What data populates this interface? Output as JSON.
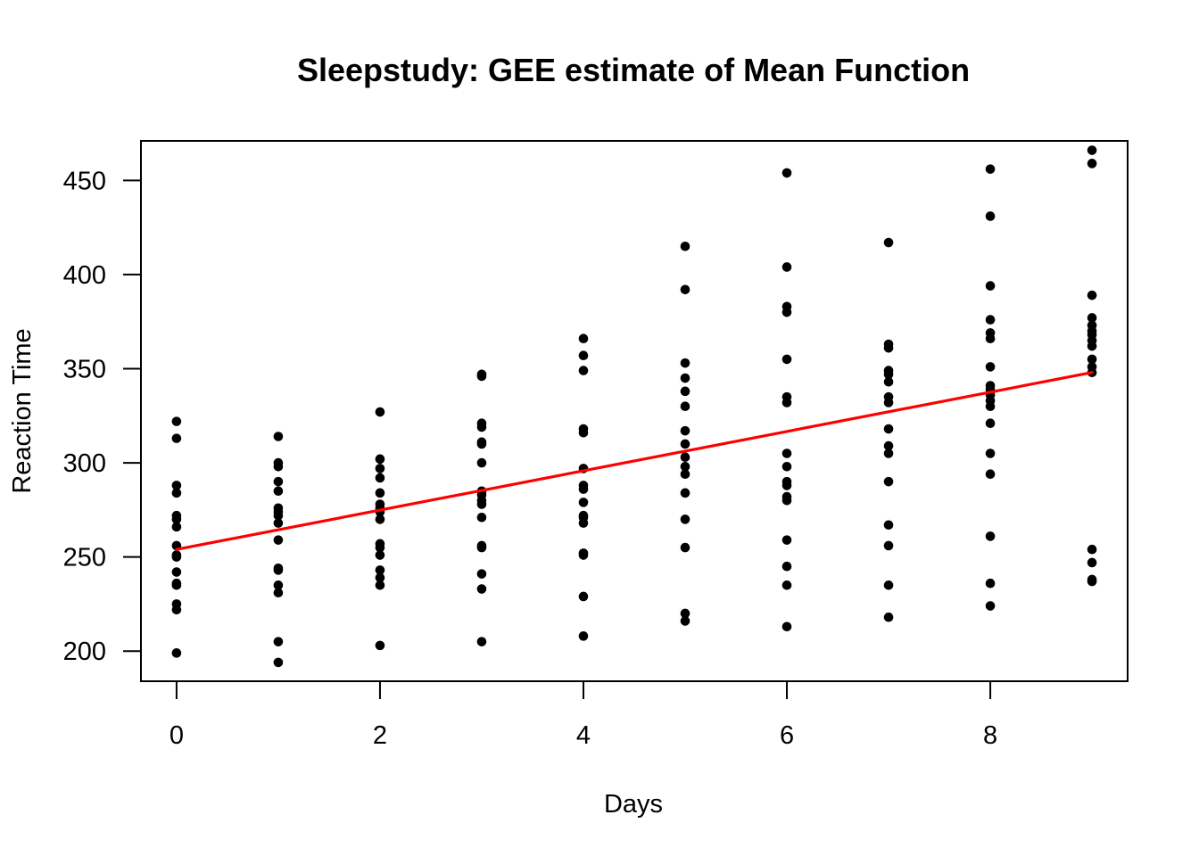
{
  "chart_data": {
    "type": "scatter",
    "title": "Sleepstudy: GEE estimate of Mean Function",
    "xlabel": "Days",
    "ylabel": "Reaction Time",
    "xlim": [
      -0.35,
      9.35
    ],
    "ylim": [
      184,
      471
    ],
    "xticks": [
      0,
      2,
      4,
      6,
      8
    ],
    "yticks": [
      200,
      250,
      300,
      350,
      400,
      450
    ],
    "grid": false,
    "legend": "none",
    "colors": {
      "points": "#000000",
      "fit_line": "#ff0000",
      "frame": "#000000"
    },
    "series": [
      {
        "type": "scatter",
        "points": [
          [
            0,
            199
          ],
          [
            0,
            222
          ],
          [
            0,
            225
          ],
          [
            0,
            235
          ],
          [
            0,
            236
          ],
          [
            0,
            242
          ],
          [
            0,
            250
          ],
          [
            0,
            251
          ],
          [
            0,
            256
          ],
          [
            0,
            266
          ],
          [
            0,
            270
          ],
          [
            0,
            272
          ],
          [
            0,
            284
          ],
          [
            0,
            288
          ],
          [
            0,
            313
          ],
          [
            0,
            322
          ],
          [
            1,
            194
          ],
          [
            1,
            205
          ],
          [
            1,
            231
          ],
          [
            1,
            235
          ],
          [
            1,
            243
          ],
          [
            1,
            244
          ],
          [
            1,
            259
          ],
          [
            1,
            268
          ],
          [
            1,
            272
          ],
          [
            1,
            274
          ],
          [
            1,
            276
          ],
          [
            1,
            285
          ],
          [
            1,
            290
          ],
          [
            1,
            298
          ],
          [
            1,
            300
          ],
          [
            1,
            314
          ],
          [
            2,
            203
          ],
          [
            2,
            235
          ],
          [
            2,
            239
          ],
          [
            2,
            243
          ],
          [
            2,
            251
          ],
          [
            2,
            255
          ],
          [
            2,
            257
          ],
          [
            2,
            270
          ],
          [
            2,
            274
          ],
          [
            2,
            276
          ],
          [
            2,
            278
          ],
          [
            2,
            284
          ],
          [
            2,
            292
          ],
          [
            2,
            297
          ],
          [
            2,
            302
          ],
          [
            2,
            327
          ],
          [
            3,
            205
          ],
          [
            3,
            233
          ],
          [
            3,
            241
          ],
          [
            3,
            255
          ],
          [
            3,
            256
          ],
          [
            3,
            271
          ],
          [
            3,
            278
          ],
          [
            3,
            280
          ],
          [
            3,
            283
          ],
          [
            3,
            285
          ],
          [
            3,
            300
          ],
          [
            3,
            310
          ],
          [
            3,
            311
          ],
          [
            3,
            319
          ],
          [
            3,
            321
          ],
          [
            3,
            346
          ],
          [
            3,
            347
          ],
          [
            4,
            208
          ],
          [
            4,
            229
          ],
          [
            4,
            251
          ],
          [
            4,
            252
          ],
          [
            4,
            268
          ],
          [
            4,
            271
          ],
          [
            4,
            272
          ],
          [
            4,
            279
          ],
          [
            4,
            286
          ],
          [
            4,
            288
          ],
          [
            4,
            297
          ],
          [
            4,
            316
          ],
          [
            4,
            318
          ],
          [
            4,
            349
          ],
          [
            4,
            357
          ],
          [
            4,
            366
          ],
          [
            5,
            216
          ],
          [
            5,
            220
          ],
          [
            5,
            255
          ],
          [
            5,
            270
          ],
          [
            5,
            284
          ],
          [
            5,
            294
          ],
          [
            5,
            298
          ],
          [
            5,
            303
          ],
          [
            5,
            310
          ],
          [
            5,
            317
          ],
          [
            5,
            330
          ],
          [
            5,
            338
          ],
          [
            5,
            345
          ],
          [
            5,
            353
          ],
          [
            5,
            392
          ],
          [
            5,
            415
          ],
          [
            6,
            213
          ],
          [
            6,
            235
          ],
          [
            6,
            245
          ],
          [
            6,
            259
          ],
          [
            6,
            280
          ],
          [
            6,
            282
          ],
          [
            6,
            288
          ],
          [
            6,
            290
          ],
          [
            6,
            298
          ],
          [
            6,
            305
          ],
          [
            6,
            332
          ],
          [
            6,
            335
          ],
          [
            6,
            355
          ],
          [
            6,
            380
          ],
          [
            6,
            383
          ],
          [
            6,
            404
          ],
          [
            6,
            454
          ],
          [
            7,
            218
          ],
          [
            7,
            235
          ],
          [
            7,
            256
          ],
          [
            7,
            267
          ],
          [
            7,
            290
          ],
          [
            7,
            305
          ],
          [
            7,
            309
          ],
          [
            7,
            318
          ],
          [
            7,
            332
          ],
          [
            7,
            335
          ],
          [
            7,
            343
          ],
          [
            7,
            347
          ],
          [
            7,
            349
          ],
          [
            7,
            361
          ],
          [
            7,
            363
          ],
          [
            7,
            417
          ],
          [
            8,
            224
          ],
          [
            8,
            236
          ],
          [
            8,
            261
          ],
          [
            8,
            294
          ],
          [
            8,
            305
          ],
          [
            8,
            321
          ],
          [
            8,
            330
          ],
          [
            8,
            333
          ],
          [
            8,
            336
          ],
          [
            8,
            339
          ],
          [
            8,
            341
          ],
          [
            8,
            351
          ],
          [
            8,
            366
          ],
          [
            8,
            369
          ],
          [
            8,
            376
          ],
          [
            8,
            394
          ],
          [
            8,
            431
          ],
          [
            8,
            456
          ],
          [
            9,
            237
          ],
          [
            9,
            238
          ],
          [
            9,
            247
          ],
          [
            9,
            254
          ],
          [
            9,
            348
          ],
          [
            9,
            351
          ],
          [
            9,
            355
          ],
          [
            9,
            362
          ],
          [
            9,
            365
          ],
          [
            9,
            368
          ],
          [
            9,
            370
          ],
          [
            9,
            373
          ],
          [
            9,
            377
          ],
          [
            9,
            389
          ],
          [
            9,
            459
          ],
          [
            9,
            466
          ]
        ]
      },
      {
        "type": "line",
        "x": [
          0,
          9
        ],
        "y": [
          254,
          348
        ]
      }
    ]
  }
}
